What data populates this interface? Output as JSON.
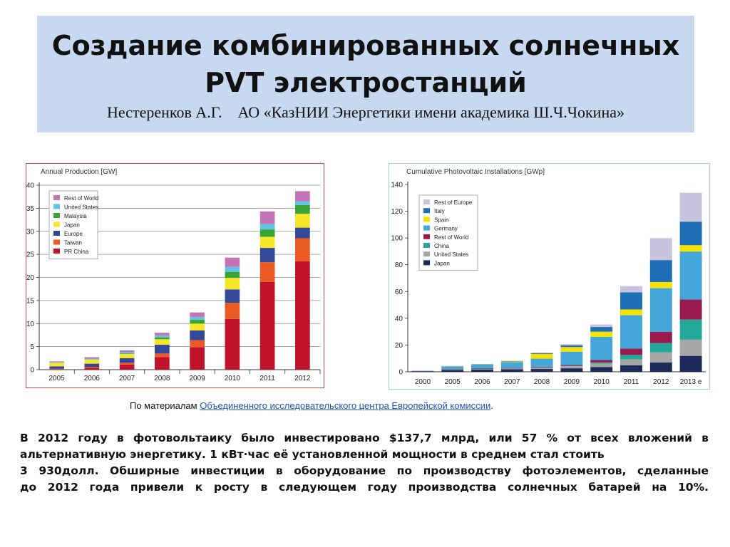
{
  "slide": {
    "title": "Создание комбинированных солнечных PVT электростанций",
    "subtitle_author": "Нестеренков А.Г.",
    "subtitle_org": "АО «КазНИИ Энергетики имени академика Ш.Ч.Чокина»"
  },
  "source": {
    "prefix": "По материалам ",
    "link_text": "Объединенного исследовательского центра Европейской комиссии",
    "suffix": "."
  },
  "paragraph": [
    " В 2012 году в фотовольтаику  было инвестировано $137,7 млрд, или 57 % от всех вложений в",
    "альтернативную энергетику. 1 кВт·час её установленной мощности в среднем стал стоить",
    " 3 930долл. Обширные инвестиции в оборудование по производству фотоэлементов, сделанные",
    "до 2012 года привели к росту в следующем году производства солнечных батарей на 10%."
  ],
  "colors": {
    "title_bg": "#c6d9f0",
    "chart1_border": "#c0504d",
    "chart2_border": "#9fd3dc"
  },
  "chart_data": [
    {
      "type": "bar",
      "stacked": true,
      "title": "Annual Production [GW]",
      "categories": [
        "2005",
        "2006",
        "2007",
        "2008",
        "2009",
        "2010",
        "2011",
        "2012"
      ],
      "ylim": [
        0,
        40
      ],
      "yticks": [
        0,
        5,
        10,
        15,
        20,
        25,
        30,
        35,
        40
      ],
      "grid": true,
      "legend_position": "top-left",
      "series": [
        {
          "name": "PR China",
          "color": "#c0122a",
          "values": [
            0.1,
            0.4,
            1.1,
            2.7,
            4.9,
            11.0,
            19.0,
            23.5
          ]
        },
        {
          "name": "Taiwan",
          "color": "#ea5b24",
          "values": [
            0.1,
            0.2,
            0.4,
            0.8,
            1.5,
            3.5,
            4.3,
            5.0
          ]
        },
        {
          "name": "Europe",
          "color": "#34489a",
          "values": [
            0.5,
            0.7,
            1.0,
            1.9,
            2.1,
            2.9,
            3.1,
            2.3
          ]
        },
        {
          "name": "Japan",
          "color": "#f5e62a",
          "values": [
            0.8,
            0.9,
            0.9,
            1.2,
            1.5,
            2.5,
            2.4,
            3.0
          ]
        },
        {
          "name": "Malaysia",
          "color": "#3aa335",
          "values": [
            0.0,
            0.0,
            0.1,
            0.4,
            0.8,
            1.3,
            1.6,
            1.9
          ]
        },
        {
          "name": "United States",
          "color": "#5ec3e6",
          "values": [
            0.1,
            0.2,
            0.3,
            0.4,
            0.6,
            1.1,
            1.2,
            0.8
          ]
        },
        {
          "name": "Rest of World",
          "color": "#c473b4",
          "values": [
            0.2,
            0.3,
            0.4,
            0.6,
            1.0,
            2.0,
            2.7,
            2.2
          ]
        }
      ]
    },
    {
      "type": "bar",
      "stacked": true,
      "title": "Cumulative Photovoltaic Installations [GWp]",
      "categories": [
        "2000",
        "2005",
        "2006",
        "2007",
        "2008",
        "2009",
        "2010",
        "2011",
        "2012",
        "2013 e"
      ],
      "ylim": [
        0,
        140
      ],
      "yticks": [
        0,
        20,
        40,
        60,
        80,
        100,
        120,
        140
      ],
      "grid": false,
      "legend_position": "top-left",
      "series": [
        {
          "name": "Japan",
          "color": "#1c2a5a",
          "values": [
            0.3,
            1.4,
            1.7,
            1.9,
            2.1,
            2.6,
            3.6,
            4.9,
            6.9,
            11.9
          ]
        },
        {
          "name": "United States",
          "color": "#a6a6a6",
          "values": [
            0.0,
            0.5,
            0.6,
            0.8,
            1.2,
            1.6,
            2.5,
            4.4,
            7.6,
            12.1
          ]
        },
        {
          "name": "China",
          "color": "#23a89a",
          "values": [
            0.0,
            0.1,
            0.1,
            0.1,
            0.1,
            0.3,
            0.9,
            3.3,
            7.0,
            15.0
          ]
        },
        {
          "name": "Rest of World",
          "color": "#9b1a4e",
          "values": [
            0.3,
            0.3,
            0.3,
            0.3,
            0.4,
            0.6,
            1.8,
            4.8,
            8.3,
            15.0
          ]
        },
        {
          "name": "Germany",
          "color": "#45a7d9",
          "values": [
            0.1,
            1.9,
            2.8,
            4.2,
            6.0,
            9.9,
            17.3,
            24.9,
            32.7,
            35.9
          ]
        },
        {
          "name": "Spain",
          "color": "#f5e200",
          "values": [
            0.0,
            0.1,
            0.1,
            0.7,
            3.5,
            3.5,
            3.9,
            4.3,
            4.6,
            4.7
          ]
        },
        {
          "name": "Italy",
          "color": "#1f6fb6",
          "values": [
            0.0,
            0.0,
            0.1,
            0.1,
            0.5,
            1.2,
            3.5,
            12.8,
            16.4,
            17.6
          ]
        },
        {
          "name": "Rest of Europe",
          "color": "#c7c5de",
          "values": [
            0.0,
            0.1,
            0.1,
            0.2,
            0.6,
            1.0,
            1.9,
            4.6,
            16.4,
            21.6
          ]
        }
      ]
    }
  ]
}
